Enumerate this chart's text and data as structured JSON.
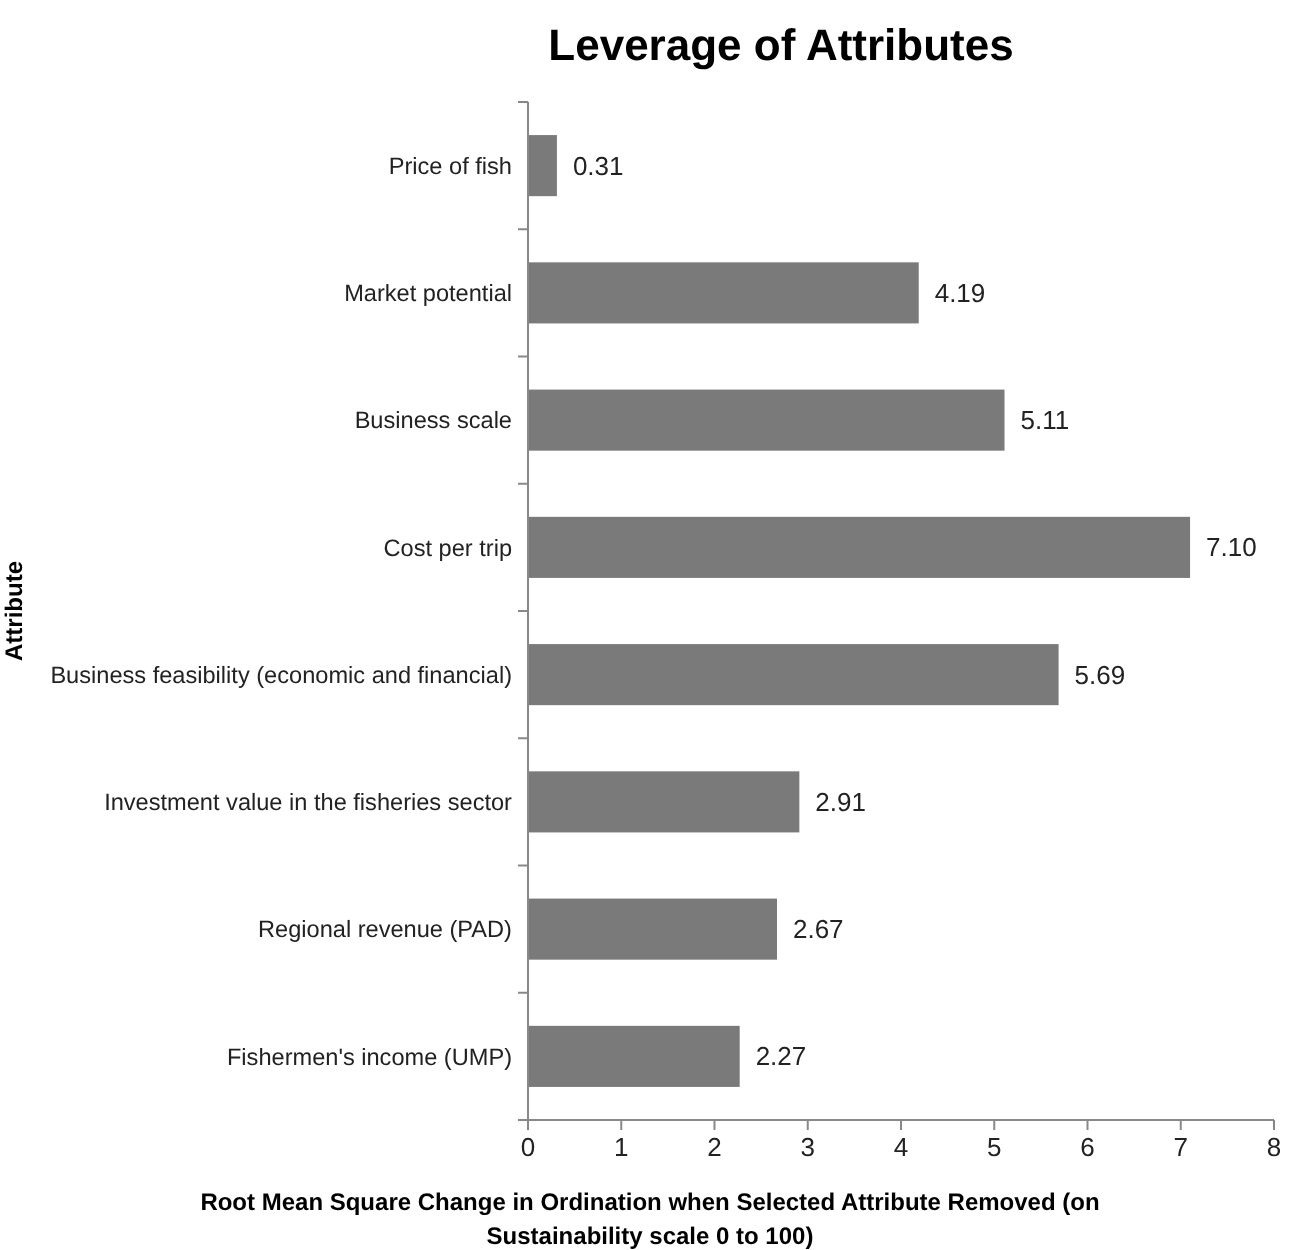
{
  "chart_data": {
    "type": "bar",
    "orientation": "horizontal",
    "title": "Leverage of Attributes",
    "xlabel": "Root Mean Square Change in Ordination when Selected Attribute Removed (on Sustainability scale 0 to 100)",
    "ylabel": "Attribute",
    "categories": [
      "Price of fish",
      "Market potential",
      "Business scale",
      "Cost per trip",
      "Business feasibility (economic and financial)",
      "Investment value in the fisheries sector",
      "Regional revenue (PAD)",
      "Fishermen's income (UMP)"
    ],
    "values": [
      0.31,
      4.19,
      5.11,
      7.1,
      5.69,
      2.91,
      2.67,
      2.27
    ],
    "value_labels": [
      "0.31",
      "4.19",
      "5.11",
      "7.10",
      "5.69",
      "2.91",
      "2.67",
      "2.27"
    ],
    "color": "#7a7a7a",
    "xlim": [
      0,
      8
    ],
    "xticks": [
      0,
      1,
      2,
      3,
      4,
      5,
      6,
      7,
      8
    ],
    "grid": false
  }
}
